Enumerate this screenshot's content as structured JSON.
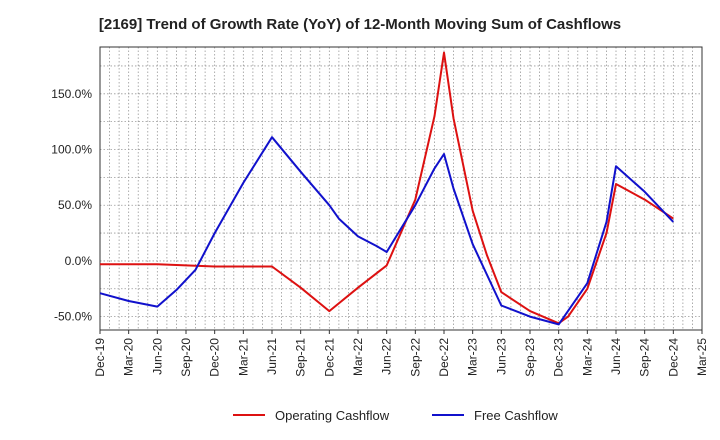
{
  "chart_data": {
    "type": "line",
    "title": "[2169]  Trend of Growth Rate (YoY) of 12-Month Moving Sum of Cashflows",
    "xlabel": "",
    "ylabel": "",
    "categories": [
      "Dec-19",
      "Mar-20",
      "Jun-20",
      "Sep-20",
      "Dec-20",
      "Mar-21",
      "Jun-21",
      "Sep-21",
      "Dec-21",
      "Mar-22",
      "Jun-22",
      "Sep-22",
      "Dec-22",
      "Mar-23",
      "Jun-23",
      "Sep-23",
      "Dec-23",
      "Mar-24",
      "Jun-24",
      "Sep-24",
      "Dec-24",
      "Mar-25"
    ],
    "y_ticks": [
      {
        "value": 150,
        "label": "150.0%"
      },
      {
        "value": 100,
        "label": "100.0%"
      },
      {
        "value": 50,
        "label": "50.0%"
      },
      {
        "value": 0,
        "label": "0.0%"
      },
      {
        "value": -50,
        "label": "-50.0%"
      }
    ],
    "ylim": [
      -62,
      192
    ],
    "grid": true,
    "legend_position": "bottom",
    "series": [
      {
        "name": "Operating Cashflow",
        "color": "#dd1111",
        "points": [
          {
            "x": 0,
            "y": -3
          },
          {
            "x": 1,
            "y": -3
          },
          {
            "x": 2,
            "y": -3
          },
          {
            "x": 3,
            "y": -4
          },
          {
            "x": 4,
            "y": -5
          },
          {
            "x": 5,
            "y": -5
          },
          {
            "x": 6,
            "y": -5
          },
          {
            "x": 7,
            "y": -24
          },
          {
            "x": 8,
            "y": -45
          },
          {
            "x": 9,
            "y": -24
          },
          {
            "x": 10,
            "y": -4
          },
          {
            "x": 11,
            "y": 55
          },
          {
            "x": 11.67,
            "y": 130
          },
          {
            "x": 12,
            "y": 187
          },
          {
            "x": 12.33,
            "y": 128
          },
          {
            "x": 13,
            "y": 45
          },
          {
            "x": 13.5,
            "y": 5
          },
          {
            "x": 14,
            "y": -28
          },
          {
            "x": 15,
            "y": -45
          },
          {
            "x": 16,
            "y": -56
          },
          {
            "x": 16.33,
            "y": -50
          },
          {
            "x": 17,
            "y": -25
          },
          {
            "x": 17.67,
            "y": 25
          },
          {
            "x": 18,
            "y": 69
          },
          {
            "x": 19,
            "y": 55
          },
          {
            "x": 20,
            "y": 38
          }
        ]
      },
      {
        "name": "Free Cashflow",
        "color": "#1111cc",
        "points": [
          {
            "x": 0,
            "y": -29
          },
          {
            "x": 1,
            "y": -36
          },
          {
            "x": 2,
            "y": -41
          },
          {
            "x": 2.67,
            "y": -26
          },
          {
            "x": 3.33,
            "y": -8
          },
          {
            "x": 4,
            "y": 25
          },
          {
            "x": 5,
            "y": 70
          },
          {
            "x": 6,
            "y": 111
          },
          {
            "x": 7,
            "y": 80
          },
          {
            "x": 8,
            "y": 50
          },
          {
            "x": 8.33,
            "y": 38
          },
          {
            "x": 9,
            "y": 22
          },
          {
            "x": 9.67,
            "y": 13
          },
          {
            "x": 10,
            "y": 8
          },
          {
            "x": 11,
            "y": 50
          },
          {
            "x": 11.67,
            "y": 83
          },
          {
            "x": 12,
            "y": 96
          },
          {
            "x": 12.33,
            "y": 65
          },
          {
            "x": 13,
            "y": 15
          },
          {
            "x": 14,
            "y": -40
          },
          {
            "x": 15,
            "y": -50
          },
          {
            "x": 16,
            "y": -57
          },
          {
            "x": 17,
            "y": -20
          },
          {
            "x": 17.67,
            "y": 35
          },
          {
            "x": 18,
            "y": 85
          },
          {
            "x": 19,
            "y": 62
          },
          {
            "x": 20,
            "y": 35
          }
        ]
      }
    ]
  }
}
